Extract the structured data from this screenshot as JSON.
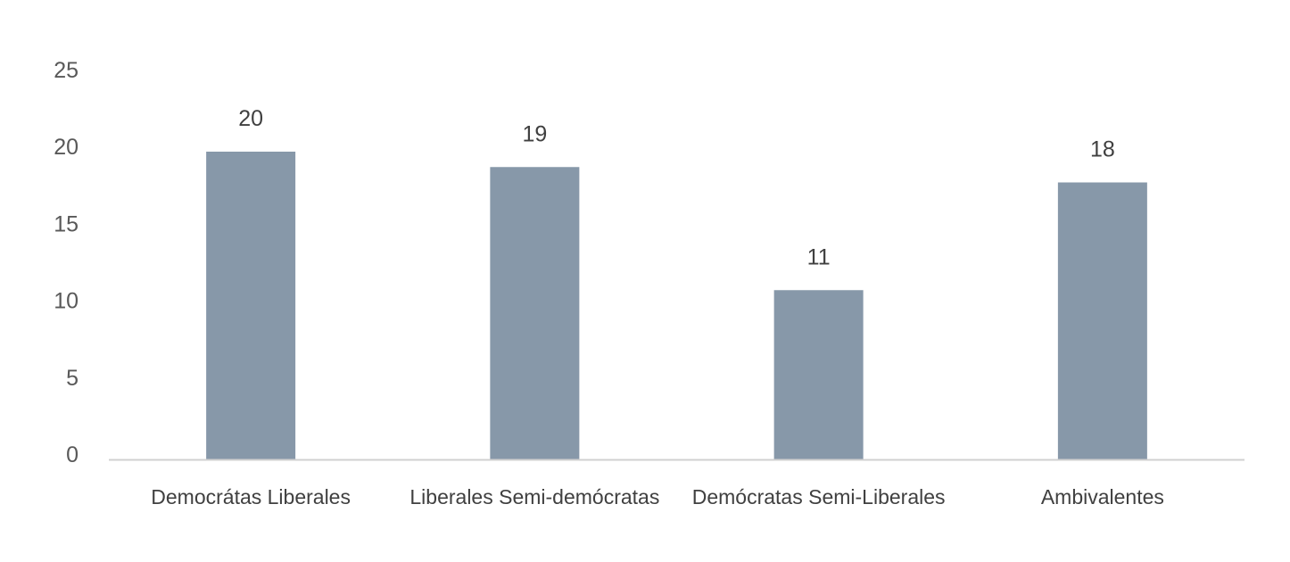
{
  "chart_data": {
    "type": "bar",
    "categories": [
      "Democrátas Liberales",
      "Liberales Semi-demócratas",
      "Demócratas Semi-Liberales",
      "Ambivalentes"
    ],
    "values": [
      20,
      19,
      11,
      18
    ],
    "data_labels": [
      "20",
      "19",
      "11",
      "18"
    ],
    "y_ticks": [
      "0",
      "5",
      "10",
      "15",
      "20",
      "25"
    ],
    "ylim": [
      0,
      25
    ],
    "title": "",
    "xlabel": "",
    "ylabel": "",
    "grid": false,
    "legend": "none",
    "bar_color": "#8798a9",
    "axis_color": "#d0d0d0"
  }
}
